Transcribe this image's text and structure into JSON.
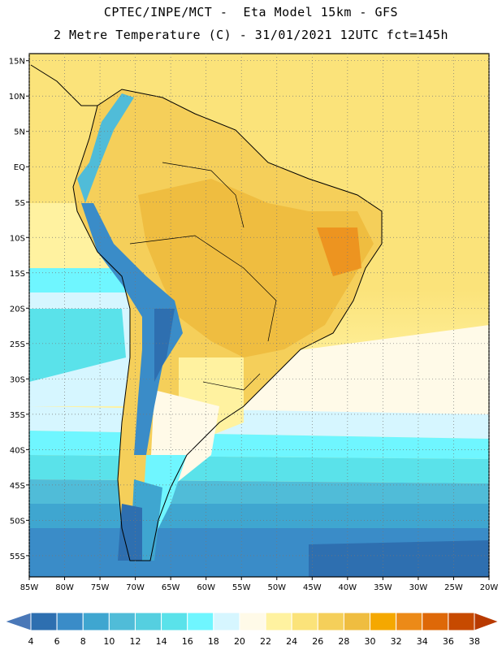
{
  "title_line1": "CPTEC/INPE/MCT -  Eta Model 15km - GFS",
  "title_line2": "2 Metre Temperature (C) - 31/01/2021 12UTC fct=145h",
  "map": {
    "lon_range": [
      -85,
      -20
    ],
    "lat_range": [
      -58,
      16
    ],
    "lat_ticks": [
      "15N",
      "10N",
      "5N",
      "EQ",
      "5S",
      "10S",
      "15S",
      "20S",
      "25S",
      "30S",
      "35S",
      "40S",
      "45S",
      "50S",
      "55S"
    ],
    "lat_values": [
      15,
      10,
      5,
      0,
      -5,
      -10,
      -15,
      -20,
      -25,
      -30,
      -35,
      -40,
      -45,
      -50,
      -55
    ],
    "lon_ticks": [
      "85W",
      "80W",
      "75W",
      "70W",
      "65W",
      "60W",
      "55W",
      "50W",
      "45W",
      "40W",
      "35W",
      "30W",
      "25W",
      "20W"
    ],
    "lon_values": [
      -85,
      -80,
      -75,
      -70,
      -65,
      -60,
      -55,
      -50,
      -45,
      -40,
      -35,
      -30,
      -25,
      -20
    ],
    "grid": "dotted"
  },
  "colorbar": {
    "labels": [
      "4",
      "6",
      "8",
      "10",
      "12",
      "14",
      "16",
      "18",
      "20",
      "22",
      "24",
      "26",
      "28",
      "30",
      "32",
      "34",
      "36",
      "38"
    ],
    "colors": [
      "#4a78b8",
      "#2e6fb0",
      "#3a8cc8",
      "#3fa6d0",
      "#50bcd8",
      "#55cfe0",
      "#5ae2ea",
      "#6ff6ff",
      "#d6f6ff",
      "#fffae8",
      "#fff2a0",
      "#fbe37a",
      "#f5cf5a",
      "#efbd40",
      "#f5a800",
      "#ec8a18",
      "#de6808",
      "#c74a00",
      "#b83a00"
    ]
  }
}
